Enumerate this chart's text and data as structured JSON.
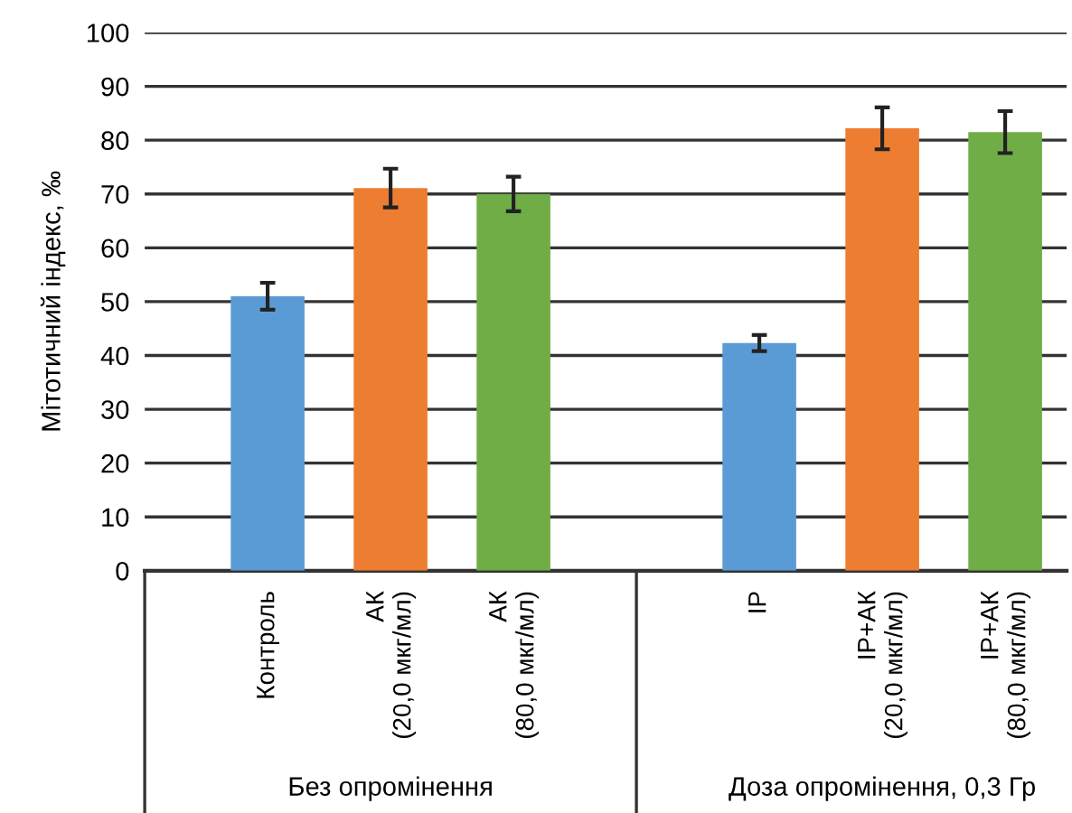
{
  "chart_data": {
    "type": "bar",
    "ylabel": "Мітотичний індекс, ‰",
    "categories": [
      "Контроль",
      "АК\n(20,0 мкг/мл)",
      "АК\n(80,0 мкг/мл)",
      null,
      "IP",
      "IP+АК\n(20,0 мкг/мл)",
      "IP+АК\n(80,0 мкг/мл)"
    ],
    "values": [
      51.0,
      71.1,
      70.0,
      null,
      42.3,
      82.2,
      81.5
    ],
    "errors": [
      2.5,
      3.6,
      3.2,
      null,
      1.5,
      3.9,
      3.9
    ],
    "colors": [
      "#5b9bd5",
      "#ed7d31",
      "#70ad47",
      null,
      "#5b9bd5",
      "#ed7d31",
      "#70ad47"
    ],
    "ylim": [
      0,
      100
    ],
    "yticks": [
      0,
      10,
      20,
      30,
      40,
      50,
      60,
      70,
      80,
      90,
      100
    ],
    "grid": "y",
    "annotations": [
      "Без опромінення",
      "Доза опромінення, 0,3 Гр"
    ]
  }
}
